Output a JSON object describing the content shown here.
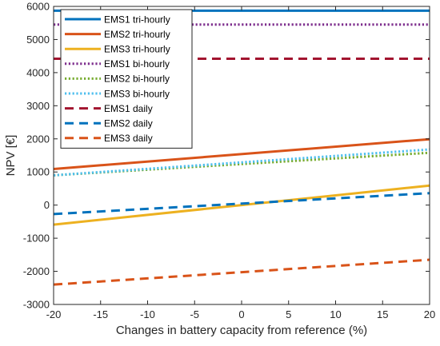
{
  "chart_data": {
    "type": "line",
    "title": "",
    "xlabel": "Changes in battery capacity from reference (%)",
    "ylabel": "NPV [€]",
    "xlim": [
      -20,
      20
    ],
    "ylim": [
      -3000,
      6000
    ],
    "xticks": [
      -20,
      -15,
      -10,
      -5,
      0,
      5,
      10,
      15,
      20
    ],
    "yticks": [
      -3000,
      -2000,
      -1000,
      0,
      1000,
      2000,
      3000,
      4000,
      5000,
      6000
    ],
    "x": [
      -20,
      20
    ],
    "legend_position": "top-left",
    "grid": false,
    "series": [
      {
        "name": "EMS1 tri-hourly",
        "values": [
          5870,
          5870
        ],
        "color": "#0072BD",
        "style": "solid"
      },
      {
        "name": "EMS2 tri-hourly",
        "values": [
          1090,
          1990
        ],
        "color": "#D95319",
        "style": "solid"
      },
      {
        "name": "EMS3 tri-hourly",
        "values": [
          -590,
          590
        ],
        "color": "#EDB120",
        "style": "solid"
      },
      {
        "name": "EMS1 bi-hourly",
        "values": [
          5450,
          5450
        ],
        "color": "#7E2F8E",
        "style": "dotted"
      },
      {
        "name": "EMS2 bi-hourly",
        "values": [
          900,
          1580
        ],
        "color": "#77AC30",
        "style": "dotted"
      },
      {
        "name": "EMS3 bi-hourly",
        "values": [
          900,
          1680
        ],
        "color": "#4DBEEE",
        "style": "dotted"
      },
      {
        "name": "EMS1 daily",
        "values": [
          4420,
          4420
        ],
        "color": "#A2142F",
        "style": "dashed"
      },
      {
        "name": "EMS2 daily",
        "values": [
          -270,
          360
        ],
        "color": "#0072BD",
        "style": "dashed"
      },
      {
        "name": "EMS3 daily",
        "values": [
          -2400,
          -1650
        ],
        "color": "#D95319",
        "style": "dashed"
      }
    ]
  }
}
